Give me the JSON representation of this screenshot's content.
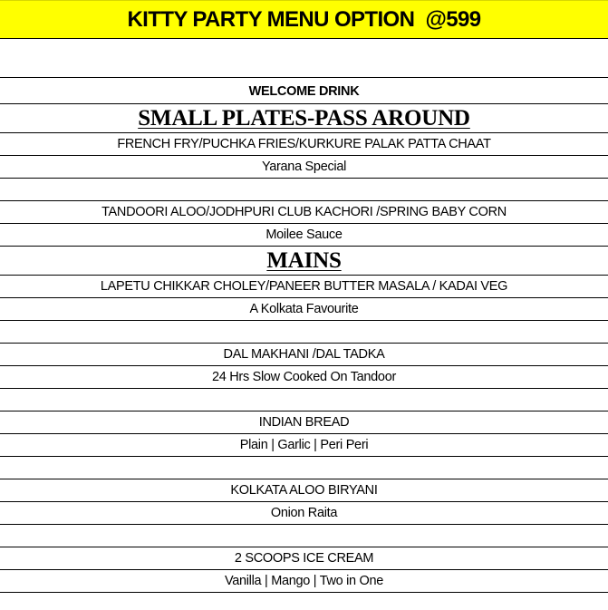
{
  "title": "KITTY PARTY MENU OPTION  @599",
  "rows": [
    {
      "type": "welcome",
      "text": "WELCOME DRINK"
    },
    {
      "type": "section",
      "text": "SMALL PLATES-PASS AROUND"
    },
    {
      "type": "item",
      "text": "FRENCH FRY/PUCHKA FRIES/KURKURE PALAK PATTA CHAAT"
    },
    {
      "type": "item",
      "text": "Yarana Special"
    },
    {
      "type": "blank",
      "text": ""
    },
    {
      "type": "item",
      "text": "TANDOORI ALOO/JODHPURI CLUB KACHORI /SPRING BABY CORN"
    },
    {
      "type": "item",
      "text": "Moilee Sauce"
    },
    {
      "type": "section",
      "text": "MAINS"
    },
    {
      "type": "item",
      "text": "LAPETU CHIKKAR CHOLEY/PANEER BUTTER MASALA / KADAI VEG"
    },
    {
      "type": "item",
      "text": "A Kolkata Favourite"
    },
    {
      "type": "blank",
      "text": ""
    },
    {
      "type": "item",
      "text": "DAL MAKHANI /DAL TADKA"
    },
    {
      "type": "item",
      "text": "24 Hrs Slow Cooked On Tandoor"
    },
    {
      "type": "blank",
      "text": ""
    },
    {
      "type": "item",
      "text": "INDIAN BREAD"
    },
    {
      "type": "item",
      "text": "Plain | Garlic | Peri Peri"
    },
    {
      "type": "blank",
      "text": ""
    },
    {
      "type": "item",
      "text": "KOLKATA ALOO BIRYANI"
    },
    {
      "type": "item",
      "text": "Onion Raita"
    },
    {
      "type": "blank",
      "text": ""
    },
    {
      "type": "item",
      "text": "2 SCOOPS ICE CREAM"
    },
    {
      "type": "item",
      "text": "Vanilla | Mango | Two in One"
    }
  ],
  "colors": {
    "header_bg": "#ffff00"
  }
}
